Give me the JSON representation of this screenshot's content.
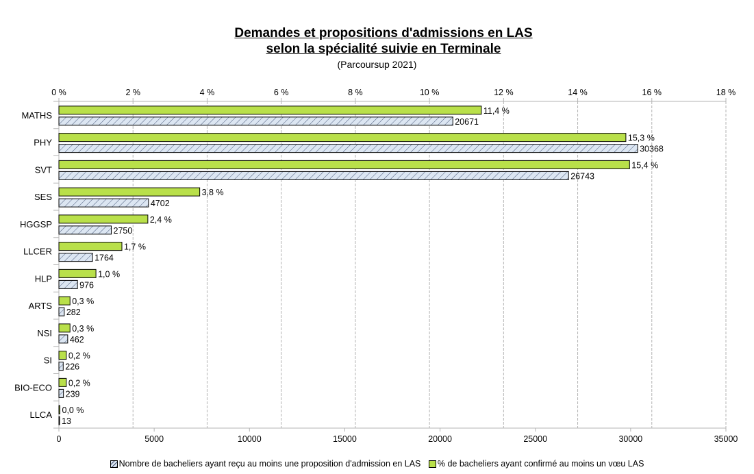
{
  "chart_data": {
    "type": "bar",
    "orientation": "horizontal",
    "title_lines": [
      "Demandes et propositions d'admissions en LAS",
      "selon la spécialité suivie en Terminale"
    ],
    "subtitle": "(Parcoursup 2021)",
    "categories": [
      "MATHS",
      "PHY",
      "SVT",
      "SES",
      "HGGSP",
      "LLCER",
      "HLP",
      "ARTS",
      "NSI",
      "SI",
      "BIO-ECO",
      "LLCA"
    ],
    "series": [
      {
        "name": "% de bacheliers ayant confirmé au moins un vœu LAS",
        "axis": "top",
        "color": "#b9e04a",
        "pattern": "solid",
        "values": [
          11.4,
          15.3,
          15.4,
          3.8,
          2.4,
          1.7,
          1.0,
          0.3,
          0.3,
          0.2,
          0.2,
          0.0
        ],
        "labels": [
          "11,4 %",
          "15,3 %",
          "15,4 %",
          "3,8 %",
          "2,4 %",
          "1,7 %",
          "1,0 %",
          "0,3 %",
          "0,3 %",
          "0,2 %",
          "0,2 %",
          "0,0 %"
        ]
      },
      {
        "name": "Nombre de bacheliers ayant reçu au moins une proposition d'admission en LAS",
        "axis": "bottom",
        "color": "#dce6f2",
        "pattern": "hatched",
        "values": [
          20671,
          30368,
          26743,
          4702,
          2750,
          1764,
          976,
          282,
          462,
          226,
          239,
          13
        ],
        "labels": [
          "20671",
          "30368",
          "26743",
          "4702",
          "2750",
          "1764",
          "976",
          "282",
          "462",
          "226",
          "239",
          "13"
        ]
      }
    ],
    "top_axis": {
      "range": [
        0,
        18
      ],
      "ticks": [
        0,
        2,
        4,
        6,
        8,
        10,
        12,
        14,
        16,
        18
      ],
      "tick_labels": [
        "0 %",
        "2 %",
        "4 %",
        "6 %",
        "8 %",
        "10 %",
        "12 %",
        "14 %",
        "16 %",
        "18 %"
      ],
      "grid": "dashed"
    },
    "bottom_axis": {
      "range": [
        0,
        35000
      ],
      "ticks": [
        0,
        5000,
        10000,
        15000,
        20000,
        25000,
        30000,
        35000
      ],
      "tick_labels": [
        "0",
        "5000",
        "10000",
        "15000",
        "20000",
        "25000",
        "30000",
        "35000"
      ]
    },
    "legend_position": "bottom",
    "legend": [
      {
        "label": "Nombre de bacheliers ayant reçu au moins une proposition d'admission en LAS",
        "swatch": "hatched"
      },
      {
        "label": "% de bacheliers ayant confirmé au moins un vœu LAS",
        "swatch": "green"
      }
    ]
  }
}
